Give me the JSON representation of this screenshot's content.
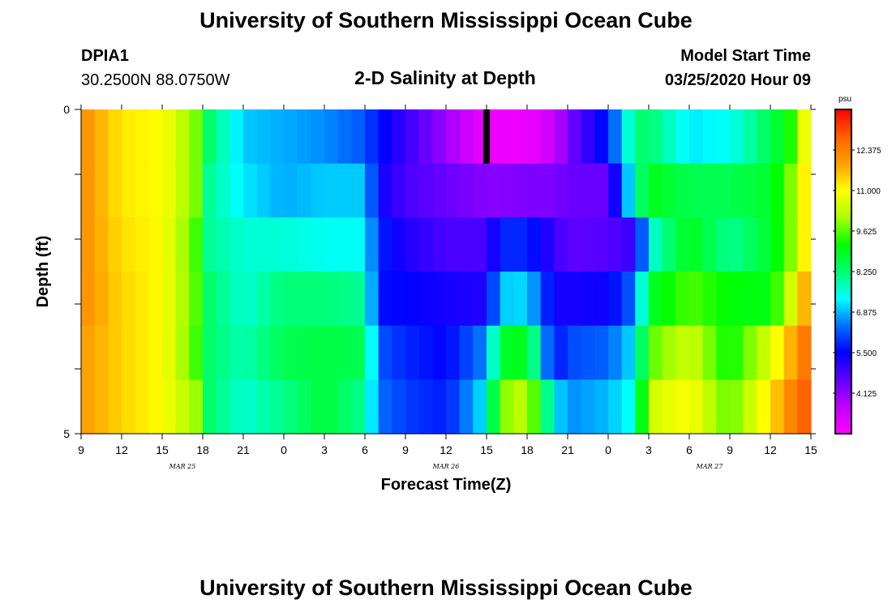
{
  "title_top": "University of Southern Mississippi Ocean Cube",
  "title_bottom": "University of Southern Mississippi Ocean Cube",
  "station": {
    "id": "DPIA1",
    "location": "30.2500N 88.0750W"
  },
  "model_start": {
    "label": "Model Start Time",
    "value": "03/25/2020 Hour 09"
  },
  "chart_data": {
    "type": "heatmap",
    "title": "2-D Salinity at Depth",
    "xlabel": "Forecast Time(Z)",
    "ylabel": "Depth (ft)",
    "x_range_hours": [
      0,
      54
    ],
    "x_ticks": {
      "hours": [
        0,
        3,
        6,
        9,
        12,
        15,
        18,
        21,
        24,
        27,
        30,
        33,
        36,
        39,
        42,
        45,
        48,
        51,
        54
      ],
      "labels": [
        "9",
        "12",
        "15",
        "18",
        "21",
        "0",
        "3",
        "6",
        "9",
        "12",
        "15",
        "18",
        "21",
        "0",
        "3",
        "6",
        "9",
        "12",
        "15"
      ]
    },
    "date_labels": [
      {
        "hour": 7.5,
        "text": "MAR 25"
      },
      {
        "hour": 27,
        "text": "MAR 26"
      },
      {
        "hour": 46.5,
        "text": "MAR 27"
      }
    ],
    "y_range": [
      0,
      5
    ],
    "y_tick_labels": [
      {
        "value": 0,
        "label": "0"
      },
      {
        "value": 1,
        "label": ""
      },
      {
        "value": 2,
        "label": ""
      },
      {
        "value": 3,
        "label": ""
      },
      {
        "value": 4,
        "label": ""
      },
      {
        "value": 5,
        "label": "5"
      }
    ],
    "current_time_hour": 30,
    "colorbar": {
      "unit": "psu",
      "min": 2.75,
      "max": 13.75,
      "tick_values": [
        4.125,
        5.5,
        6.875,
        8.25,
        9.625,
        11.0,
        12.375
      ],
      "tick_labels": [
        "4.125",
        "5.500",
        "6.875",
        "8.250",
        "9.625",
        "11.000",
        "12.375"
      ],
      "stops": [
        "#ff00ff",
        "#c000ff",
        "#6000ff",
        "#0000ff",
        "#0070ff",
        "#00ffff",
        "#00ff70",
        "#00ff00",
        "#aaff00",
        "#ffff00",
        "#ffa000",
        "#ff6000",
        "#ff0000"
      ]
    },
    "x_nodes": [
      0,
      3,
      6,
      8.5,
      9.5,
      12,
      15,
      18,
      21,
      22,
      24,
      27,
      30,
      31,
      33,
      35,
      36,
      39,
      41,
      42,
      45,
      48,
      51,
      53,
      54
    ],
    "layers": [
      [
        12.2,
        11.2,
        11.0,
        9.8,
        8.3,
        7.0,
        6.8,
        6.6,
        6.2,
        5.6,
        5.0,
        4.0,
        3.0,
        3.0,
        3.0,
        3.5,
        4.3,
        5.8,
        8.2,
        8.3,
        7.2,
        7.4,
        8.5,
        9.6,
        12.0
      ],
      [
        12.2,
        11.2,
        11.0,
        9.8,
        8.0,
        7.2,
        6.8,
        7.0,
        7.0,
        5.4,
        4.8,
        4.5,
        4.2,
        4.2,
        4.3,
        4.3,
        4.5,
        4.5,
        7.8,
        9.0,
        8.5,
        8.5,
        8.8,
        10.2,
        12.0
      ],
      [
        12.2,
        11.3,
        11.0,
        9.5,
        8.0,
        7.6,
        7.6,
        7.4,
        7.4,
        5.8,
        5.2,
        4.8,
        4.8,
        5.8,
        5.8,
        5.0,
        4.6,
        4.7,
        5.0,
        7.5,
        9.0,
        8.0,
        8.8,
        10.2,
        12.0
      ],
      [
        12.2,
        11.4,
        11.0,
        9.6,
        8.3,
        7.6,
        8.2,
        8.2,
        8.0,
        5.6,
        5.5,
        5.3,
        5.2,
        7.0,
        7.1,
        5.3,
        5.3,
        5.4,
        6.4,
        8.8,
        9.6,
        9.1,
        9.0,
        11.0,
        12.4
      ],
      [
        12.0,
        11.4,
        11.0,
        9.5,
        8.3,
        7.8,
        8.5,
        8.6,
        8.5,
        6.2,
        5.8,
        5.5,
        6.6,
        8.8,
        9.0,
        5.5,
        6.1,
        6.3,
        7.2,
        9.6,
        10.5,
        9.1,
        10.6,
        12.1,
        12.8
      ],
      [
        12.0,
        11.4,
        11.0,
        10.0,
        8.3,
        7.6,
        8.1,
        8.7,
        8.0,
        6.4,
        6.0,
        5.7,
        7.3,
        9.8,
        10.4,
        7.3,
        6.6,
        6.9,
        7.5,
        10.5,
        11.0,
        9.6,
        11.3,
        12.6,
        13.0
      ]
    ]
  }
}
